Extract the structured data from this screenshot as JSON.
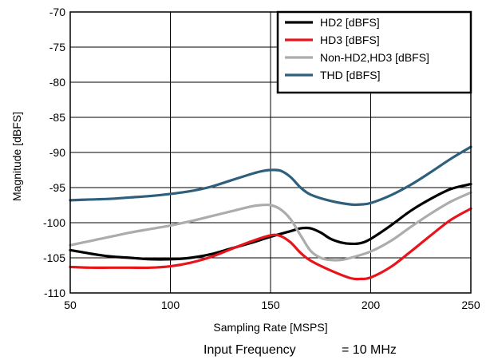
{
  "chart_data": {
    "type": "line",
    "title": "",
    "xlabel": "Sampling Rate [MSPS]",
    "ylabel": "Magnitude [dBFS]",
    "xlim": [
      50,
      250
    ],
    "ylim": [
      -110,
      -70
    ],
    "xticks": [
      50,
      100,
      150,
      200,
      250
    ],
    "yticks": [
      -110,
      -105,
      -100,
      -95,
      -90,
      -85,
      -80,
      -75,
      -70
    ],
    "grid": true,
    "legend_position": "top-right",
    "annotation": {
      "label": "Input Frequency",
      "value": "= 10 MHz"
    },
    "series": [
      {
        "name": "HD2 [dBFS]",
        "color": "#000000",
        "points": [
          [
            50,
            -103.9
          ],
          [
            60,
            -104.4
          ],
          [
            70,
            -104.8
          ],
          [
            80,
            -105.0
          ],
          [
            90,
            -105.2
          ],
          [
            100,
            -105.2
          ],
          [
            110,
            -105.0
          ],
          [
            120,
            -104.5
          ],
          [
            130,
            -103.7
          ],
          [
            140,
            -102.9
          ],
          [
            150,
            -102.0
          ],
          [
            160,
            -101.2
          ],
          [
            165,
            -100.8
          ],
          [
            170,
            -100.8
          ],
          [
            175,
            -101.4
          ],
          [
            180,
            -102.3
          ],
          [
            185,
            -102.8
          ],
          [
            190,
            -103.0
          ],
          [
            195,
            -102.9
          ],
          [
            200,
            -102.3
          ],
          [
            210,
            -100.4
          ],
          [
            220,
            -98.3
          ],
          [
            230,
            -96.6
          ],
          [
            240,
            -95.2
          ],
          [
            250,
            -94.5
          ]
        ]
      },
      {
        "name": "HD3 [dBFS]",
        "color": "#e8141b",
        "points": [
          [
            50,
            -106.3
          ],
          [
            60,
            -106.4
          ],
          [
            70,
            -106.4
          ],
          [
            80,
            -106.4
          ],
          [
            90,
            -106.4
          ],
          [
            100,
            -106.2
          ],
          [
            110,
            -105.7
          ],
          [
            120,
            -104.9
          ],
          [
            130,
            -103.8
          ],
          [
            140,
            -102.7
          ],
          [
            150,
            -101.8
          ],
          [
            155,
            -101.9
          ],
          [
            160,
            -102.8
          ],
          [
            165,
            -104.3
          ],
          [
            170,
            -105.4
          ],
          [
            180,
            -106.8
          ],
          [
            190,
            -107.9
          ],
          [
            195,
            -108.0
          ],
          [
            200,
            -107.8
          ],
          [
            210,
            -106.3
          ],
          [
            220,
            -104.1
          ],
          [
            230,
            -101.8
          ],
          [
            240,
            -99.6
          ],
          [
            250,
            -98.0
          ]
        ]
      },
      {
        "name": "Non-HD2,HD3 [dBFS]",
        "color": "#acacac",
        "points": [
          [
            50,
            -103.2
          ],
          [
            60,
            -102.6
          ],
          [
            70,
            -102.0
          ],
          [
            80,
            -101.4
          ],
          [
            90,
            -100.9
          ],
          [
            100,
            -100.4
          ],
          [
            110,
            -99.8
          ],
          [
            120,
            -99.1
          ],
          [
            130,
            -98.4
          ],
          [
            140,
            -97.7
          ],
          [
            145,
            -97.5
          ],
          [
            150,
            -97.5
          ],
          [
            155,
            -98.1
          ],
          [
            160,
            -99.5
          ],
          [
            165,
            -101.8
          ],
          [
            170,
            -104.0
          ],
          [
            175,
            -105.0
          ],
          [
            180,
            -105.3
          ],
          [
            185,
            -105.3
          ],
          [
            190,
            -105.0
          ],
          [
            200,
            -104.1
          ],
          [
            210,
            -102.6
          ],
          [
            220,
            -100.6
          ],
          [
            230,
            -98.7
          ],
          [
            240,
            -97.0
          ],
          [
            250,
            -95.7
          ]
        ]
      },
      {
        "name": "THD [dBFS]",
        "color": "#2e5f7c",
        "points": [
          [
            50,
            -96.8
          ],
          [
            60,
            -96.7
          ],
          [
            70,
            -96.6
          ],
          [
            80,
            -96.4
          ],
          [
            90,
            -96.2
          ],
          [
            100,
            -95.9
          ],
          [
            110,
            -95.5
          ],
          [
            120,
            -94.9
          ],
          [
            130,
            -94.0
          ],
          [
            140,
            -93.1
          ],
          [
            145,
            -92.7
          ],
          [
            150,
            -92.5
          ],
          [
            155,
            -92.6
          ],
          [
            160,
            -93.5
          ],
          [
            165,
            -95.0
          ],
          [
            170,
            -96.0
          ],
          [
            180,
            -96.9
          ],
          [
            190,
            -97.4
          ],
          [
            195,
            -97.4
          ],
          [
            200,
            -97.2
          ],
          [
            210,
            -96.1
          ],
          [
            220,
            -94.6
          ],
          [
            230,
            -92.8
          ],
          [
            240,
            -90.9
          ],
          [
            250,
            -89.2
          ]
        ]
      }
    ]
  }
}
